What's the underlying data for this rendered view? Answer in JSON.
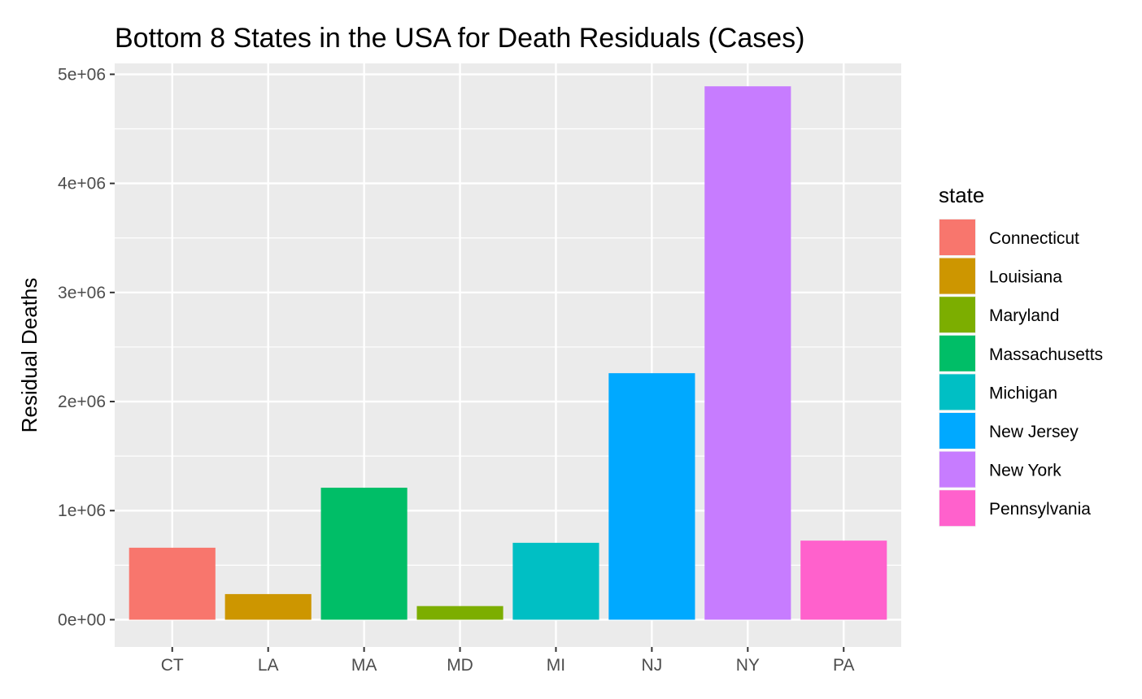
{
  "chart_data": {
    "type": "bar",
    "title": "Bottom 8 States in the USA for Death Residuals (Cases)",
    "xlabel": "",
    "ylabel": "Residual Deaths",
    "categories": [
      "CT",
      "LA",
      "MA",
      "MD",
      "MI",
      "NJ",
      "NY",
      "PA"
    ],
    "values": [
      660000,
      235000,
      1210000,
      125000,
      705000,
      2260000,
      4890000,
      725000
    ],
    "colors": [
      "#F8766D",
      "#CD9600",
      "#7CAE00",
      "#00BE67",
      "#00BFC4",
      "#00A9FF",
      "#C77CFF",
      "#FF61CC"
    ],
    "bar_fill_order": [
      0,
      1,
      3,
      2,
      4,
      5,
      6,
      7
    ],
    "ylim": [
      -250000,
      5100000
    ],
    "yticks": [
      0,
      1000000,
      2000000,
      3000000,
      4000000,
      5000000
    ],
    "ytick_labels": [
      "0e+00",
      "1e+06",
      "2e+06",
      "3e+06",
      "4e+06",
      "5e+06"
    ],
    "grid": true,
    "background": "#EBEBEB",
    "legend": {
      "title": "state",
      "placement": "right",
      "entries": [
        "Connecticut",
        "Louisiana",
        "Maryland",
        "Massachusetts",
        "Michigan",
        "New Jersey",
        "New York",
        "Pennsylvania"
      ]
    }
  }
}
